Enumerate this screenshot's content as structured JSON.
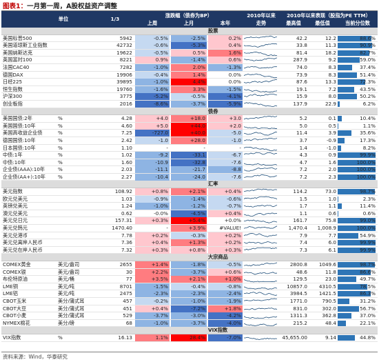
{
  "title": {
    "figure": "图表1：",
    "text": "一月第一周，A股权益资产调整"
  },
  "header": {
    "unit": "单位",
    "date": "1/3",
    "change_group": "涨跌幅（债券为BP）",
    "week": "上周",
    "month": "上月",
    "ytd": "本年",
    "trend_group": "2010年以来",
    "trend": "走势",
    "since2010_group": "2010年以来表现（股指为PE TTM）",
    "high": "最高值",
    "low": "最低值",
    "pct": "当前分位数"
  },
  "sections": [
    {
      "label": "股票",
      "rows": [
        {
          "name": "美国标普500",
          "unit": "",
          "last": "5942",
          "wk": "-0.5%",
          "mo": "-2.5%",
          "yr": "0.2%",
          "hi": "42.2",
          "lo": "12.2",
          "pct": "88.6%",
          "pv": 88.6
        },
        {
          "name": "美国道琼斯工业指数",
          "unit": "",
          "last": "42732",
          "wk": "-0.6%",
          "mo": "-5.3%",
          "yr": "0.4%",
          "hi": "33.8",
          "lo": "11.3",
          "pct": "90.9%",
          "pv": 90.9
        },
        {
          "name": "美国纳斯达克",
          "unit": "",
          "last": "19622",
          "wk": "-0.5%",
          "mo": "0.5%",
          "yr": "1.6%",
          "hi": "81.4",
          "lo": "18.2",
          "pct": "82.7%",
          "pv": 82.7
        },
        {
          "name": "英国富时100",
          "unit": "",
          "last": "8221",
          "wk": "0.9%",
          "mo": "-1.4%",
          "yr": "0.6%",
          "hi": "287.9",
          "lo": "9.2",
          "pct": "59.0%",
          "pv": 59.0
        },
        {
          "name": "法国CAC40",
          "unit": "",
          "last": "7282",
          "wk": "-1.0%",
          "mo": "2.0%",
          "yr": "-1.3%",
          "hi": "74.0",
          "lo": "8.3",
          "pct": "37.4%",
          "pv": 37.4
        },
        {
          "name": "德国DAX",
          "unit": "",
          "last": "19906",
          "wk": "-0.4%",
          "mo": "1.4%",
          "yr": "0.0%",
          "hi": "73.9",
          "lo": "8.3",
          "pct": "51.4%",
          "pv": 51.4
        },
        {
          "name": "日经225",
          "unit": "",
          "last": "39895",
          "wk": "-1.0%",
          "mo": "4.4%",
          "yr": "0.0%",
          "hi": "87.6",
          "lo": "13.3",
          "pct": "72.3%",
          "pv": 72.3
        },
        {
          "name": "恒生指数",
          "unit": "",
          "last": "19760",
          "wk": "-1.6%",
          "mo": "3.3%",
          "yr": "-1.5%",
          "hi": "19.1",
          "lo": "7.2",
          "pct": "43.5%",
          "pv": 43.5
        },
        {
          "name": "沪深300",
          "unit": "",
          "last": "3775",
          "wk": "-5.2%",
          "mo": "-0.5%",
          "yr": "-4.1%",
          "hi": "15.9",
          "lo": "8.0",
          "pct": "50.2%",
          "pv": 50.2
        },
        {
          "name": "创业板指",
          "unit": "",
          "last": "2016",
          "wk": "-8.6%",
          "mo": "-3.7%",
          "yr": "-5.9%",
          "hi": "137.9",
          "lo": "22.9",
          "pct": "6.2%",
          "pv": 6.2
        }
      ]
    },
    {
      "label": "债券",
      "rows": [
        {
          "name": "美国国债:2年",
          "unit": "%",
          "last": "4.28",
          "wk": "+4.0",
          "mo": "+18.0",
          "yr": "+3.0",
          "hi": "5.2",
          "lo": "0.1",
          "pct": "10.4%",
          "pv": 10.4
        },
        {
          "name": "美国国债:10年",
          "unit": "%",
          "last": "4.60",
          "wk": "+5.0",
          "mo": "+44.0",
          "yr": "+2.0",
          "hi": "5.0",
          "lo": "0.5",
          "pct": "1.1%",
          "pv": 1.1
        },
        {
          "name": "美国高收益企业债",
          "unit": "%",
          "last": "7.25",
          "wk": "-727.0",
          "mo": "+40.0",
          "yr": "-5.0",
          "hi": "11.4",
          "lo": "3.9",
          "pct": "35.6%",
          "pv": 35.6
        },
        {
          "name": "德国国债:10年",
          "unit": "%",
          "last": "2.42",
          "wk": "-1.0",
          "mo": "+28.0",
          "yr": "-1.0",
          "hi": "3.7",
          "lo": "-0.9",
          "pct": "17.3%",
          "pv": 17.3
        },
        {
          "name": "日本国债:10年",
          "unit": "%",
          "last": "1.10",
          "wk": "-",
          "mo": "-",
          "yr": "-",
          "hi": "1.4",
          "lo": "-1.0",
          "pct": "8.2%",
          "pv": 8.2
        },
        {
          "name": "中债:1年",
          "unit": "%",
          "last": "1.02",
          "wk": "-9.2",
          "mo": "-33.1",
          "yr": "-6.7",
          "hi": "4.3",
          "lo": "0.9",
          "pct": "99.9%",
          "pv": 99.9
        },
        {
          "name": "中债:10年",
          "unit": "%",
          "last": "1.60",
          "wk": "-10.9",
          "mo": "-32.8",
          "yr": "-7.6",
          "hi": "4.7",
          "lo": "1.6",
          "pct": "100.0%",
          "pv": 100.0
        },
        {
          "name": "企业债(AAA):10年",
          "unit": "%",
          "last": "2.03",
          "wk": "-11.1",
          "mo": "-21.7",
          "yr": "-8.8",
          "hi": "7.2",
          "lo": "2.0",
          "pct": "100.0%",
          "pv": 100.0
        },
        {
          "name": "企业债(AA+):10年",
          "unit": "%",
          "last": "2.27",
          "wk": "-10.4",
          "mo": "-24.0",
          "yr": "-7.6",
          "hi": "7.2",
          "lo": "2.3",
          "pct": "100.0%",
          "pv": 100.0
        }
      ]
    },
    {
      "label": "汇率",
      "rows": [
        {
          "name": "美元指数",
          "unit": "",
          "last": "108.92",
          "wk": "+0.8%",
          "mo": "+2.1%",
          "yr": "+0.4%",
          "hi": "114.2",
          "lo": "73.0",
          "pct": "98.7%",
          "pv": 98.7
        },
        {
          "name": "欧元兑美元",
          "unit": "",
          "last": "1.03",
          "wk": "-0.9%",
          "mo": "-1.4%",
          "yr": "-0.6%",
          "hi": "1.5",
          "lo": "1.0",
          "pct": "2.3%",
          "pv": 2.3
        },
        {
          "name": "英镑兑美元",
          "unit": "",
          "last": "1.24",
          "wk": "-1.0%",
          "mo": "-1.2%",
          "yr": "-0.7%",
          "hi": "1.7",
          "lo": "1.1",
          "pct": "11.4%",
          "pv": 11.4
        },
        {
          "name": "澳元兑美元",
          "unit": "",
          "last": "0.62",
          "wk": "-0.0%",
          "mo": "-4.5%",
          "yr": "+0.4%",
          "hi": "1.1",
          "lo": "0.6",
          "pct": "0.6%",
          "pv": 0.6
        },
        {
          "name": "美元兑日元",
          "unit": "",
          "last": "157.31",
          "wk": "+0.3%",
          "mo": "+5.4%",
          "yr": "+0.0%",
          "hi": "161.7",
          "lo": "75.8",
          "pct": "99.0%",
          "pv": 99.0
        },
        {
          "name": "美元兑韩元",
          "unit": "",
          "last": "1470.40",
          "wk": "-",
          "mo": "+3.9%",
          "yr": "#VALUE!",
          "hi": "1,470.4",
          "lo": "1,008.9",
          "pct": "100.0%",
          "pv": 100.0
        },
        {
          "name": "美元兑港币",
          "unit": "",
          "last": "7.78",
          "wk": "+0.2%",
          "mo": "-0.3%",
          "yr": "+0.2%",
          "hi": "7.9",
          "lo": "7.7",
          "pct": "54.9%",
          "pv": 54.9
        },
        {
          "name": "美元兑离岸人民币",
          "unit": "",
          "last": "7.36",
          "wk": "+0.4%",
          "mo": "+1.3%",
          "yr": "+0.2%",
          "hi": "7.4",
          "lo": "6.0",
          "pct": "99.9%",
          "pv": 99.9
        },
        {
          "name": "美元兑在岸人民币",
          "unit": "",
          "last": "7.32",
          "wk": "+0.3%",
          "mo": "+0.8%",
          "yr": "+0.3%",
          "hi": "7.3",
          "lo": "6.1",
          "pct": "99.9%",
          "pv": 99.9
        }
      ]
    },
    {
      "label": "大宗商品",
      "rows": [
        {
          "name": "COMEX黄金",
          "unit": "美元/盎司",
          "last": "2655",
          "wk": "+1.4%",
          "mo": "-1.8%",
          "yr": "-0.5%",
          "hi": "2800.8",
          "lo": "1049.6",
          "pct": "98.7%",
          "pv": 98.7
        },
        {
          "name": "COMEX银",
          "unit": "美元/盎司",
          "last": "30",
          "wk": "+2.2%",
          "mo": "-3.7%",
          "yr": "+0.6%",
          "hi": "48.6",
          "lo": "11.8",
          "pct": "86.6%",
          "pv": 86.6
        },
        {
          "name": "布伦特原油",
          "unit": "美元/桶",
          "last": "77",
          "wk": "+3.5%",
          "mo": "+2.1%",
          "yr": "+1.0%",
          "hi": "129.5",
          "lo": "23.0",
          "pct": "49.7%",
          "pv": 49.7
        },
        {
          "name": "LME铜",
          "unit": "美元/吨",
          "last": "8701",
          "wk": "-1.5%",
          "mo": "-0.4%",
          "yr": "-0.8%",
          "hi": "10857.0",
          "lo": "4310.5",
          "pct": "78.5%",
          "pv": 78.5
        },
        {
          "name": "LME铝",
          "unit": "美元/吨",
          "last": "2475",
          "wk": "-2.3%",
          "mo": "-2.3%",
          "yr": "-2.4%",
          "hi": "3984.5",
          "lo": "1421.5",
          "pct": "86.3%",
          "pv": 86.3
        },
        {
          "name": "CBOT玉米",
          "unit": "美分/蒲式耳",
          "last": "457",
          "wk": "-0.2%",
          "mo": "-1.0%",
          "yr": "-1.9%",
          "hi": "1771.0",
          "lo": "790.5",
          "pct": "31.2%",
          "pv": 31.2
        },
        {
          "name": "CBOT大豆",
          "unit": "美分/蒲式耳",
          "last": "451",
          "wk": "+0.4%",
          "mo": "-7.2%",
          "yr": "+1.8%",
          "hi": "831.0",
          "lo": "302.0",
          "pct": "56.7%",
          "pv": 56.7
        },
        {
          "name": "CBOT小麦",
          "unit": "美分/蒲式耳",
          "last": "529",
          "wk": "-3.7%",
          "mo": "-3.0%",
          "yr": "-4.2%",
          "hi": "1311.3",
          "lo": "362.8",
          "pct": "37.0%",
          "pv": 37.0
        },
        {
          "name": "NYMEX棉花",
          "unit": "美分/磅",
          "last": "68",
          "wk": "-1.0%",
          "mo": "-3.7%",
          "yr": "-4.0%",
          "hi": "215.2",
          "lo": "48.4",
          "pct": "22.1%",
          "pv": 22.1
        }
      ]
    },
    {
      "label": "VIX指数",
      "rows": [
        {
          "name": "VIX指数",
          "unit": "%",
          "last": "16.13",
          "wk": "1.1%",
          "mo": "28.4%",
          "yr": "-7.0%",
          "hi": "45,655.00",
          "lo": "9.14",
          "pct": "44.8%",
          "pv": 44.8
        }
      ]
    }
  ],
  "source": "资料来源：Wind，华泰研究",
  "colors": {
    "header": "#1f3864",
    "pos_strong": "#ff0000",
    "pos_mid": "#ff7c80",
    "pos_light": "#ffc7ce",
    "neg_strong": "#4472c4",
    "neg_mid": "#8eb4e3",
    "neg_light": "#c5d9f1",
    "bar": "#2e75b6",
    "spark": "#1f4e79"
  }
}
